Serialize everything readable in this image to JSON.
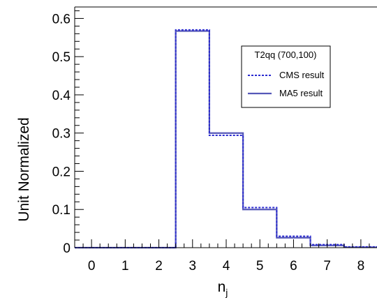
{
  "chart_data": {
    "type": "line",
    "title": "",
    "xlabel": "n",
    "xlabel_subscript": "j",
    "ylabel": "Unit Normalized",
    "xlim": [
      -0.5,
      8.5
    ],
    "ylim": [
      0,
      0.63
    ],
    "x_ticks": [
      "0",
      "1",
      "2",
      "3",
      "4",
      "5",
      "6",
      "7",
      "8"
    ],
    "y_ticks": [
      "0",
      "0.1",
      "0.2",
      "0.3",
      "0.4",
      "0.5",
      "0.6"
    ],
    "grid": false,
    "legend": {
      "title": "T2qq (700,100)",
      "placement": "top-right"
    },
    "series": [
      {
        "name": "CMS result",
        "style": "dotted",
        "color": "#2b2bd0",
        "bins": [
          {
            "low": -0.5,
            "high": 0.5,
            "value": 0.0
          },
          {
            "low": 0.5,
            "high": 1.5,
            "value": 0.0
          },
          {
            "low": 1.5,
            "high": 2.5,
            "value": 0.0
          },
          {
            "low": 2.5,
            "high": 3.5,
            "value": 0.57
          },
          {
            "low": 3.5,
            "high": 4.5,
            "value": 0.294
          },
          {
            "low": 4.5,
            "high": 5.5,
            "value": 0.105
          },
          {
            "low": 5.5,
            "high": 6.5,
            "value": 0.03
          },
          {
            "low": 6.5,
            "high": 7.5,
            "value": 0.008
          },
          {
            "low": 7.5,
            "high": 8.5,
            "value": 0.002
          }
        ]
      },
      {
        "name": "MA5 result",
        "style": "solid",
        "color": "#5558b8",
        "bins": [
          {
            "low": -0.5,
            "high": 0.5,
            "value": 0.0
          },
          {
            "low": 0.5,
            "high": 1.5,
            "value": 0.0
          },
          {
            "low": 1.5,
            "high": 2.5,
            "value": 0.0
          },
          {
            "low": 2.5,
            "high": 3.5,
            "value": 0.567
          },
          {
            "low": 3.5,
            "high": 4.5,
            "value": 0.3
          },
          {
            "low": 4.5,
            "high": 5.5,
            "value": 0.1
          },
          {
            "low": 5.5,
            "high": 6.5,
            "value": 0.026
          },
          {
            "low": 6.5,
            "high": 7.5,
            "value": 0.006
          },
          {
            "low": 7.5,
            "high": 8.5,
            "value": 0.001
          }
        ]
      }
    ]
  }
}
